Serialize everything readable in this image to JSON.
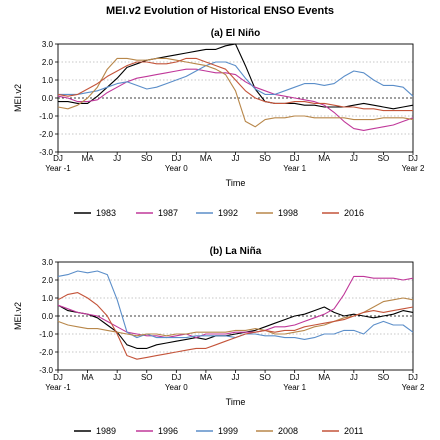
{
  "figure_title": "MEI.v2 Evolution of Historical ENSO Events",
  "chart_data": [
    {
      "type": "line",
      "title": "(a) El Niño",
      "xlabel": "Time",
      "ylabel": "MEI.v2",
      "ylim": [
        -3.0,
        3.0
      ],
      "yticks": [
        "3.0",
        "2.0",
        "1.0",
        "0.0",
        "-1.0",
        "-2.0",
        "-3.0"
      ],
      "xticks": [
        "DJ",
        "MA",
        "JJ",
        "SO",
        "DJ",
        "MA",
        "JJ",
        "SO",
        "DJ",
        "MA",
        "JJ",
        "SO",
        "DJ"
      ],
      "xticks2": [
        "Year -1",
        "Year 0",
        "Year 1",
        "Year 2"
      ],
      "grid": "horizontal dotted",
      "legend": "bottom",
      "x": [
        0,
        1,
        2,
        3,
        4,
        5,
        6,
        7,
        8,
        9,
        10,
        11,
        12,
        13,
        14,
        15,
        16,
        17,
        18,
        19,
        20,
        21,
        22,
        23,
        24,
        25,
        26,
        27,
        28,
        29,
        30,
        31,
        32,
        33,
        34,
        35,
        36
      ],
      "series": [
        {
          "name": "1983",
          "color": "#000000",
          "values": [
            -0.2,
            -0.2,
            -0.3,
            -0.3,
            0.1,
            0.6,
            1.1,
            1.7,
            1.9,
            2.1,
            2.2,
            2.3,
            2.4,
            2.5,
            2.6,
            2.7,
            2.7,
            2.9,
            3.0,
            1.8,
            0.5,
            -0.2,
            -0.3,
            -0.3,
            -0.3,
            -0.4,
            -0.4,
            -0.5,
            -0.5,
            -0.5,
            -0.4,
            -0.3,
            -0.4,
            -0.5,
            -0.6,
            -0.5,
            -0.4
          ]
        },
        {
          "name": "1987",
          "color": "#c0389a",
          "values": [
            0.1,
            0.0,
            -0.2,
            -0.2,
            -0.1,
            0.3,
            0.6,
            0.9,
            1.1,
            1.2,
            1.3,
            1.4,
            1.5,
            1.6,
            1.6,
            1.5,
            1.4,
            1.4,
            1.3,
            0.9,
            0.6,
            0.4,
            0.2,
            0.1,
            0.0,
            -0.1,
            -0.2,
            -0.4,
            -0.8,
            -1.3,
            -1.7,
            -1.8,
            -1.7,
            -1.6,
            -1.5,
            -1.3,
            -1.1
          ]
        },
        {
          "name": "1992",
          "color": "#5b8ec9",
          "values": [
            0.2,
            0.2,
            0.2,
            0.3,
            0.4,
            0.6,
            0.8,
            0.9,
            0.7,
            0.5,
            0.6,
            0.8,
            1.0,
            1.2,
            1.5,
            1.8,
            2.0,
            2.0,
            1.8,
            1.1,
            0.5,
            0.2,
            0.2,
            0.4,
            0.6,
            0.8,
            0.8,
            0.7,
            0.8,
            1.2,
            1.5,
            1.4,
            1.0,
            0.7,
            0.7,
            0.6,
            0.1
          ]
        },
        {
          "name": "1998",
          "color": "#b8874a",
          "values": [
            -0.5,
            -0.6,
            -0.4,
            0.0,
            0.6,
            1.6,
            2.2,
            2.2,
            2.1,
            2.1,
            2.2,
            2.2,
            2.1,
            2.0,
            1.9,
            1.8,
            1.6,
            1.3,
            0.4,
            -1.3,
            -1.6,
            -1.2,
            -1.1,
            -1.1,
            -1.0,
            -1.0,
            -1.1,
            -1.1,
            -1.1,
            -1.1,
            -1.2,
            -1.2,
            -1.2,
            -1.1,
            -1.1,
            -1.1,
            -1.2
          ]
        },
        {
          "name": "2016",
          "color": "#c4543a",
          "values": [
            0.2,
            0.1,
            0.2,
            0.5,
            0.8,
            1.2,
            1.5,
            1.8,
            2.0,
            2.0,
            1.9,
            1.9,
            2.0,
            2.2,
            2.2,
            2.0,
            1.8,
            1.6,
            1.0,
            0.4,
            0.0,
            -0.2,
            -0.3,
            -0.3,
            -0.2,
            -0.2,
            -0.3,
            -0.3,
            -0.4,
            -0.5,
            -0.5,
            -0.6,
            -0.6,
            -0.7,
            -0.7,
            -0.7,
            -0.7
          ]
        }
      ]
    },
    {
      "type": "line",
      "title": "(b) La Niña",
      "xlabel": "Time",
      "ylabel": "MEI.v2",
      "ylim": [
        -3.0,
        3.0
      ],
      "yticks": [
        "3.0",
        "2.0",
        "1.0",
        "0.0",
        "-1.0",
        "-2.0",
        "-3.0"
      ],
      "xticks": [
        "DJ",
        "MA",
        "JJ",
        "SO",
        "DJ",
        "MA",
        "JJ",
        "SO",
        "DJ",
        "MA",
        "JJ",
        "SO",
        "DJ"
      ],
      "xticks2": [
        "Year -1",
        "Year 0",
        "Year 1",
        "Year 2"
      ],
      "grid": "horizontal dotted",
      "legend": "bottom",
      "x": [
        0,
        1,
        2,
        3,
        4,
        5,
        6,
        7,
        8,
        9,
        10,
        11,
        12,
        13,
        14,
        15,
        16,
        17,
        18,
        19,
        20,
        21,
        22,
        23,
        24,
        25,
        26,
        27,
        28,
        29,
        30,
        31,
        32,
        33,
        34,
        35,
        36
      ],
      "series": [
        {
          "name": "1989",
          "color": "#000000",
          "values": [
            0.6,
            0.3,
            0.2,
            0.1,
            -0.1,
            -0.5,
            -0.9,
            -1.6,
            -1.8,
            -1.8,
            -1.6,
            -1.5,
            -1.4,
            -1.3,
            -1.2,
            -1.3,
            -1.1,
            -1.1,
            -1.0,
            -0.9,
            -0.8,
            -0.6,
            -0.4,
            -0.2,
            0.0,
            0.1,
            0.3,
            0.5,
            0.2,
            0.0,
            0.1,
            0.0,
            -0.1,
            0.0,
            0.1,
            0.3,
            0.2
          ]
        },
        {
          "name": "1996",
          "color": "#c0389a",
          "values": [
            0.6,
            0.4,
            0.2,
            0.1,
            0.0,
            -0.3,
            -0.6,
            -0.9,
            -1.0,
            -1.1,
            -1.1,
            -1.2,
            -1.1,
            -1.0,
            -1.2,
            -1.0,
            -1.0,
            -1.0,
            -0.9,
            -0.9,
            -0.9,
            -0.8,
            -0.6,
            -0.6,
            -0.5,
            -0.3,
            -0.1,
            0.1,
            0.4,
            1.2,
            2.2,
            2.2,
            2.1,
            2.1,
            2.1,
            2.0,
            2.1
          ]
        },
        {
          "name": "1999",
          "color": "#5b8ec9",
          "values": [
            2.2,
            2.3,
            2.5,
            2.4,
            2.5,
            2.3,
            0.9,
            -0.9,
            -1.2,
            -1.0,
            -1.2,
            -1.2,
            -1.2,
            -1.2,
            -1.1,
            -1.1,
            -1.1,
            -1.1,
            -1.2,
            -1.0,
            -1.0,
            -1.1,
            -1.1,
            -1.2,
            -1.2,
            -1.3,
            -1.2,
            -1.0,
            -1.0,
            -0.8,
            -0.8,
            -1.0,
            -0.5,
            -0.3,
            -0.5,
            -0.5,
            -0.9
          ]
        },
        {
          "name": "2008",
          "color": "#b8874a",
          "values": [
            -0.3,
            -0.5,
            -0.6,
            -0.7,
            -0.7,
            -0.8,
            -0.9,
            -1.0,
            -1.1,
            -1.0,
            -1.0,
            -1.1,
            -1.0,
            -1.0,
            -0.9,
            -0.9,
            -0.9,
            -0.9,
            -0.8,
            -0.8,
            -0.7,
            -0.8,
            -1.0,
            -1.0,
            -0.9,
            -0.8,
            -0.6,
            -0.5,
            -0.3,
            -0.1,
            0.0,
            0.2,
            0.5,
            0.8,
            0.9,
            1.0,
            0.9
          ]
        },
        {
          "name": "2011",
          "color": "#c4543a",
          "values": [
            0.9,
            1.2,
            1.3,
            1.0,
            0.6,
            0.0,
            -1.0,
            -2.2,
            -2.4,
            -2.3,
            -2.2,
            -2.1,
            -2.0,
            -1.9,
            -1.8,
            -1.8,
            -1.6,
            -1.4,
            -1.2,
            -1.0,
            -0.9,
            -0.8,
            -0.9,
            -0.8,
            -0.8,
            -0.6,
            -0.5,
            -0.4,
            -0.3,
            -0.2,
            0.0,
            0.2,
            0.3,
            0.2,
            0.3,
            0.4,
            0.5
          ]
        }
      ]
    }
  ]
}
